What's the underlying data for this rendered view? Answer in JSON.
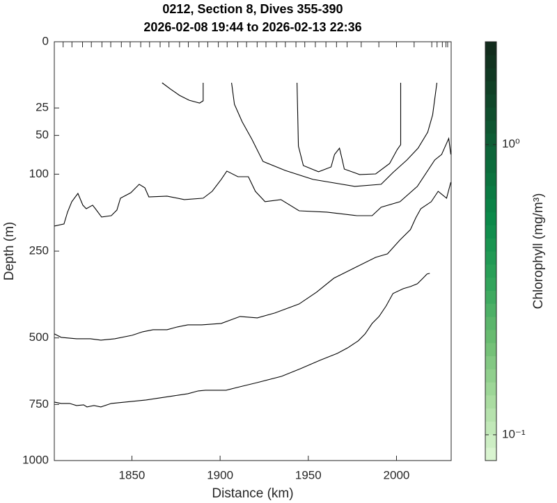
{
  "chart_data": {
    "type": "contour",
    "title": "0212, Section 8, Dives 355-390",
    "subtitle": "2026-02-08 19:44 to 2026-02-13 22:36",
    "x_label": "Distance (km)",
    "y_label": "Depth (m)",
    "xlim": [
      1806,
      2031
    ],
    "ylim": [
      0,
      1000
    ],
    "yscale": "sqrt",
    "y_reversed": true,
    "xticks": [
      1850,
      1900,
      1950,
      2000
    ],
    "yticks": [
      0,
      25,
      50,
      100,
      250,
      500,
      750,
      1000
    ],
    "top_ticks": [
      1806,
      1811,
      1816,
      1822,
      1827,
      1833,
      1838,
      1844,
      1849,
      1855,
      1860,
      1866,
      1871,
      1877,
      1882,
      1888,
      1893,
      1899,
      1904,
      1910,
      1915,
      1921,
      1926,
      1932,
      1937,
      1943,
      1948,
      1954,
      1960,
      1966,
      1972,
      1980,
      1990,
      2000,
      2010,
      2020,
      2023,
      2026,
      2028,
      2029,
      2031
    ],
    "color": "#000000",
    "lines": [
      {
        "x": [
          1867.1,
          1871.9,
          1877.0,
          1882.5,
          1888.4,
          1890.4,
          1890.4
        ],
        "values": [
          9.6,
          12.8,
          16.4,
          19.5,
          21.4,
          19.9,
          9.6
        ]
      },
      {
        "x": [
          1906.5,
          1908.1,
          1912.5,
          1918.0,
          1924.3,
          1936.9,
          1952.7,
          1976.3,
          1991.3,
          1998.0,
          2005.9,
          2012.2,
          2017.7,
          2020.5,
          2022.9
        ],
        "values": [
          9.6,
          22.3,
          36.5,
          54.1,
          81.6,
          94.4,
          108.1,
          119.3,
          115.9,
          97.5,
          79.7,
          64.6,
          46.6,
          30.4,
          9.6
        ]
      },
      {
        "x": [
          1943.6,
          1944.4,
          1947.2,
          1955.8,
          1962.9,
          1964.9,
          1967.7,
          1969.2,
          1970.4,
          1979.1,
          1988.2,
          1996.1,
          2000.4,
          2002.4,
          2002.4
        ],
        "values": [
          9.6,
          62.1,
          87.4,
          96.4,
          89.4,
          72.4,
          64.6,
          78.8,
          92.4,
          100.6,
          99.6,
          84.5,
          66.3,
          60.4,
          9.6
        ]
      },
      {
        "x": [
          1806.0,
          1811.5,
          1813.5,
          1815.9,
          1819.4,
          1822.2,
          1824.1,
          1827.7,
          1829.3,
          1832.8,
          1838.3,
          1841.5,
          1843.5,
          1849.4,
          1854.1,
          1857.3,
          1859.6,
          1869.9,
          1879.7,
          1890.4,
          1895.5,
          1900.6,
          1903.8,
          1910.1,
          1916.0,
          1920.0,
          1925.5,
          1934.5,
          1944.8,
          1960.6,
          1977.5,
          1986.2,
          1991.3,
          2002.0,
          2011.8,
          2021.7,
          2025.6,
          2029.6,
          2030.8
        ],
        "values": [
          193.7,
          189.3,
          165.5,
          145.9,
          131.1,
          152.3,
          158.9,
          152.3,
          158.9,
          175.1,
          172.4,
          161.5,
          139.6,
          129.9,
          115.9,
          121.6,
          137.2,
          135.9,
          142.1,
          139.6,
          127.5,
          108.1,
          95.4,
          103.8,
          103.8,
          127.5,
          145.9,
          142.1,
          162.9,
          165.5,
          172.4,
          172.4,
          156.2,
          145.9,
          119.3,
          79.7,
          72.4,
          53.3,
          72.4
        ]
      },
      {
        "x": [
          1806.0,
          1809.9,
          1818.6,
          1826.5,
          1832.4,
          1840.3,
          1850.2,
          1856.1,
          1862.0,
          1869.9,
          1875.8,
          1881.7,
          1889.6,
          1900.6,
          1911.3,
          1921.1,
          1931.0,
          1944.8,
          1954.7,
          1964.5,
          1976.3,
          1988.2,
          1994.9,
          2002.0,
          2007.9,
          2011.0,
          2013.8,
          2019.7,
          2023.6,
          2028.4,
          2030.8
        ],
        "values": [
          486.5,
          498.2,
          502.9,
          502.9,
          507.6,
          502.9,
          491.2,
          479.6,
          472.7,
          472.7,
          463.6,
          456.9,
          456.9,
          452.4,
          430.3,
          434.7,
          419.5,
          392.0,
          357.4,
          318.8,
          291.3,
          265.0,
          256.6,
          224.0,
          201.1,
          176.5,
          158.9,
          145.9,
          127.5,
          139.6,
          112.5
        ]
      },
      {
        "x": [
          1806.0,
          1809.9,
          1814.7,
          1818.6,
          1822.6,
          1824.5,
          1828.5,
          1832.4,
          1838.3,
          1846.2,
          1858.0,
          1865.9,
          1873.8,
          1881.7,
          1887.6,
          1891.6,
          1903.4,
          1911.3,
          1921.1,
          1934.9,
          1945.6,
          1956.6,
          1966.5,
          1972.4,
          1978.3,
          1982.2,
          1986.2,
          1990.1,
          1994.1,
          1998.0,
          2003.9,
          2007.9,
          2011.8,
          2015.0,
          2017.3,
          2018.9
        ],
        "values": [
          740.0,
          745.8,
          745.8,
          754.4,
          751.5,
          760.2,
          754.4,
          760.2,
          745.8,
          740.0,
          731.5,
          723.0,
          714.5,
          706.1,
          695.0,
          692.3,
          692.3,
          678.5,
          662.2,
          638.1,
          609.2,
          578.5,
          553.5,
          533.9,
          509.9,
          486.5,
          452.4,
          430.3,
          398.3,
          361.4,
          347.6,
          341.7,
          334.0,
          318.8,
          307.7,
          305.8
        ]
      }
    ],
    "colorbar": {
      "label": "Chlorophyll (mg/m³)",
      "scale": "log",
      "lim": [
        0.0815,
        2.26
      ],
      "ticks": [
        {
          "value": 0.1,
          "label": "10⁻¹"
        },
        {
          "value": 1,
          "label": "10⁰"
        }
      ],
      "colors": [
        "#dff7d6",
        "#a9dca0",
        "#6dbd72",
        "#2fa35a",
        "#0b8a4a",
        "#0c6a3b",
        "#11472a",
        "#12291b"
      ]
    }
  }
}
